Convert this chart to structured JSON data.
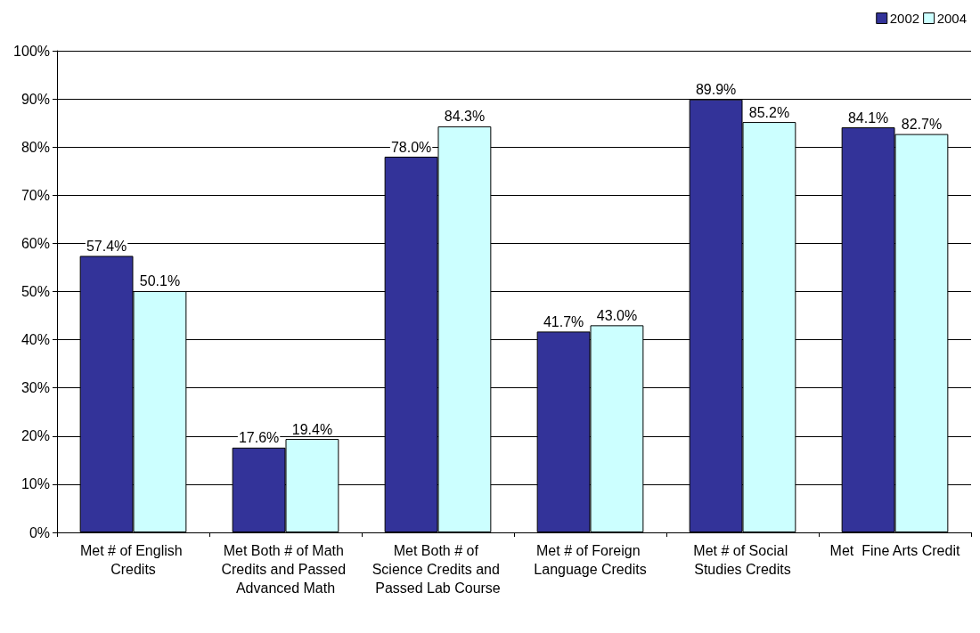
{
  "chart_data": {
    "type": "bar",
    "categories": [
      "Met # of English Credits",
      "Met Both # of Math Credits and Passed Advanced Math",
      "Met Both # of Science Credits and Passed Lab Course",
      "Met # of Foreign Language Credits",
      "Met # of Social Studies Credits",
      "Met  Fine Arts Credit"
    ],
    "series": [
      {
        "name": "2002",
        "color": "#333399",
        "values": [
          57.4,
          17.6,
          78.0,
          41.7,
          89.9,
          84.1
        ],
        "value_labels": [
          "57.4%",
          "17.6%",
          "78.0%",
          "41.7%",
          "89.9%",
          "84.1%"
        ]
      },
      {
        "name": "2004",
        "color": "#ccffff",
        "values": [
          50.1,
          19.4,
          84.3,
          43.0,
          85.2,
          82.7
        ],
        "value_labels": [
          "50.1%",
          "19.4%",
          "84.3%",
          "43.0%",
          "85.2%",
          "82.7%"
        ]
      }
    ],
    "ylim": [
      0,
      100
    ],
    "yticks": [
      {
        "value": 0,
        "label": "0%"
      },
      {
        "value": 10,
        "label": "10%"
      },
      {
        "value": 20,
        "label": "20%"
      },
      {
        "value": 30,
        "label": "30%"
      },
      {
        "value": 40,
        "label": "40%"
      },
      {
        "value": 50,
        "label": "50%"
      },
      {
        "value": 60,
        "label": "60%"
      },
      {
        "value": 70,
        "label": "70%"
      },
      {
        "value": 80,
        "label": "80%"
      },
      {
        "value": 90,
        "label": "90%"
      },
      {
        "value": 100,
        "label": "100%"
      }
    ],
    "grid": "y",
    "legend": "top right"
  }
}
